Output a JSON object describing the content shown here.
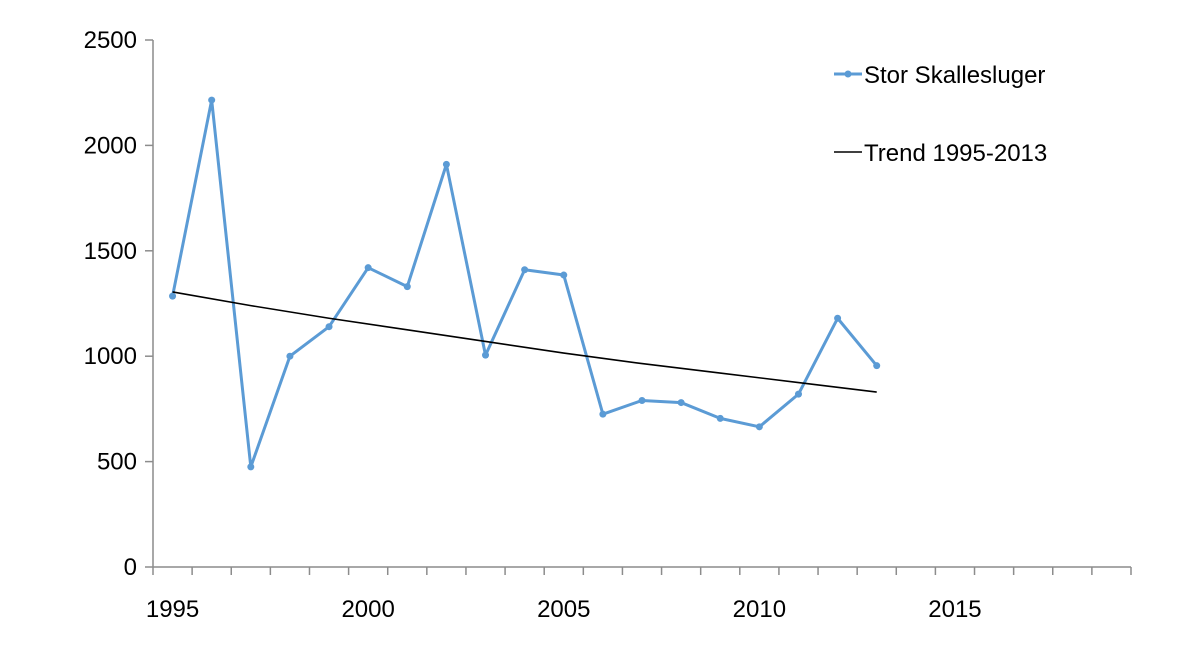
{
  "chart_data": {
    "type": "line",
    "title": "",
    "xlabel": "",
    "ylabel": "",
    "xlim": [
      1995,
      2020
    ],
    "ylim": [
      0,
      2500
    ],
    "x_ticks": [
      1995,
      2000,
      2005,
      2010,
      2015
    ],
    "y_ticks": [
      0,
      500,
      1000,
      1500,
      2000,
      2500
    ],
    "grid": false,
    "legend_position": "top-right",
    "series": [
      {
        "name": "Stor Skallesluger",
        "color": "#5b9bd5",
        "marker": "circle",
        "x": [
          1995,
          1996,
          1997,
          1998,
          1999,
          2000,
          2001,
          2002,
          2003,
          2004,
          2005,
          2006,
          2007,
          2008,
          2009,
          2010,
          2011,
          2012,
          2013
        ],
        "y": [
          1285,
          2215,
          475,
          1000,
          1140,
          1420,
          1330,
          1910,
          1005,
          1410,
          1385,
          725,
          790,
          780,
          705,
          665,
          820,
          1180,
          955
        ]
      },
      {
        "name": "Trend 1995-2013",
        "color": "#000000",
        "marker": "none",
        "x": [
          1995,
          1997,
          1999,
          2001,
          2003,
          2005,
          2007,
          2009,
          2011,
          2013
        ],
        "y": [
          1305,
          1240,
          1180,
          1125,
          1070,
          1015,
          965,
          920,
          875,
          830
        ]
      }
    ]
  }
}
